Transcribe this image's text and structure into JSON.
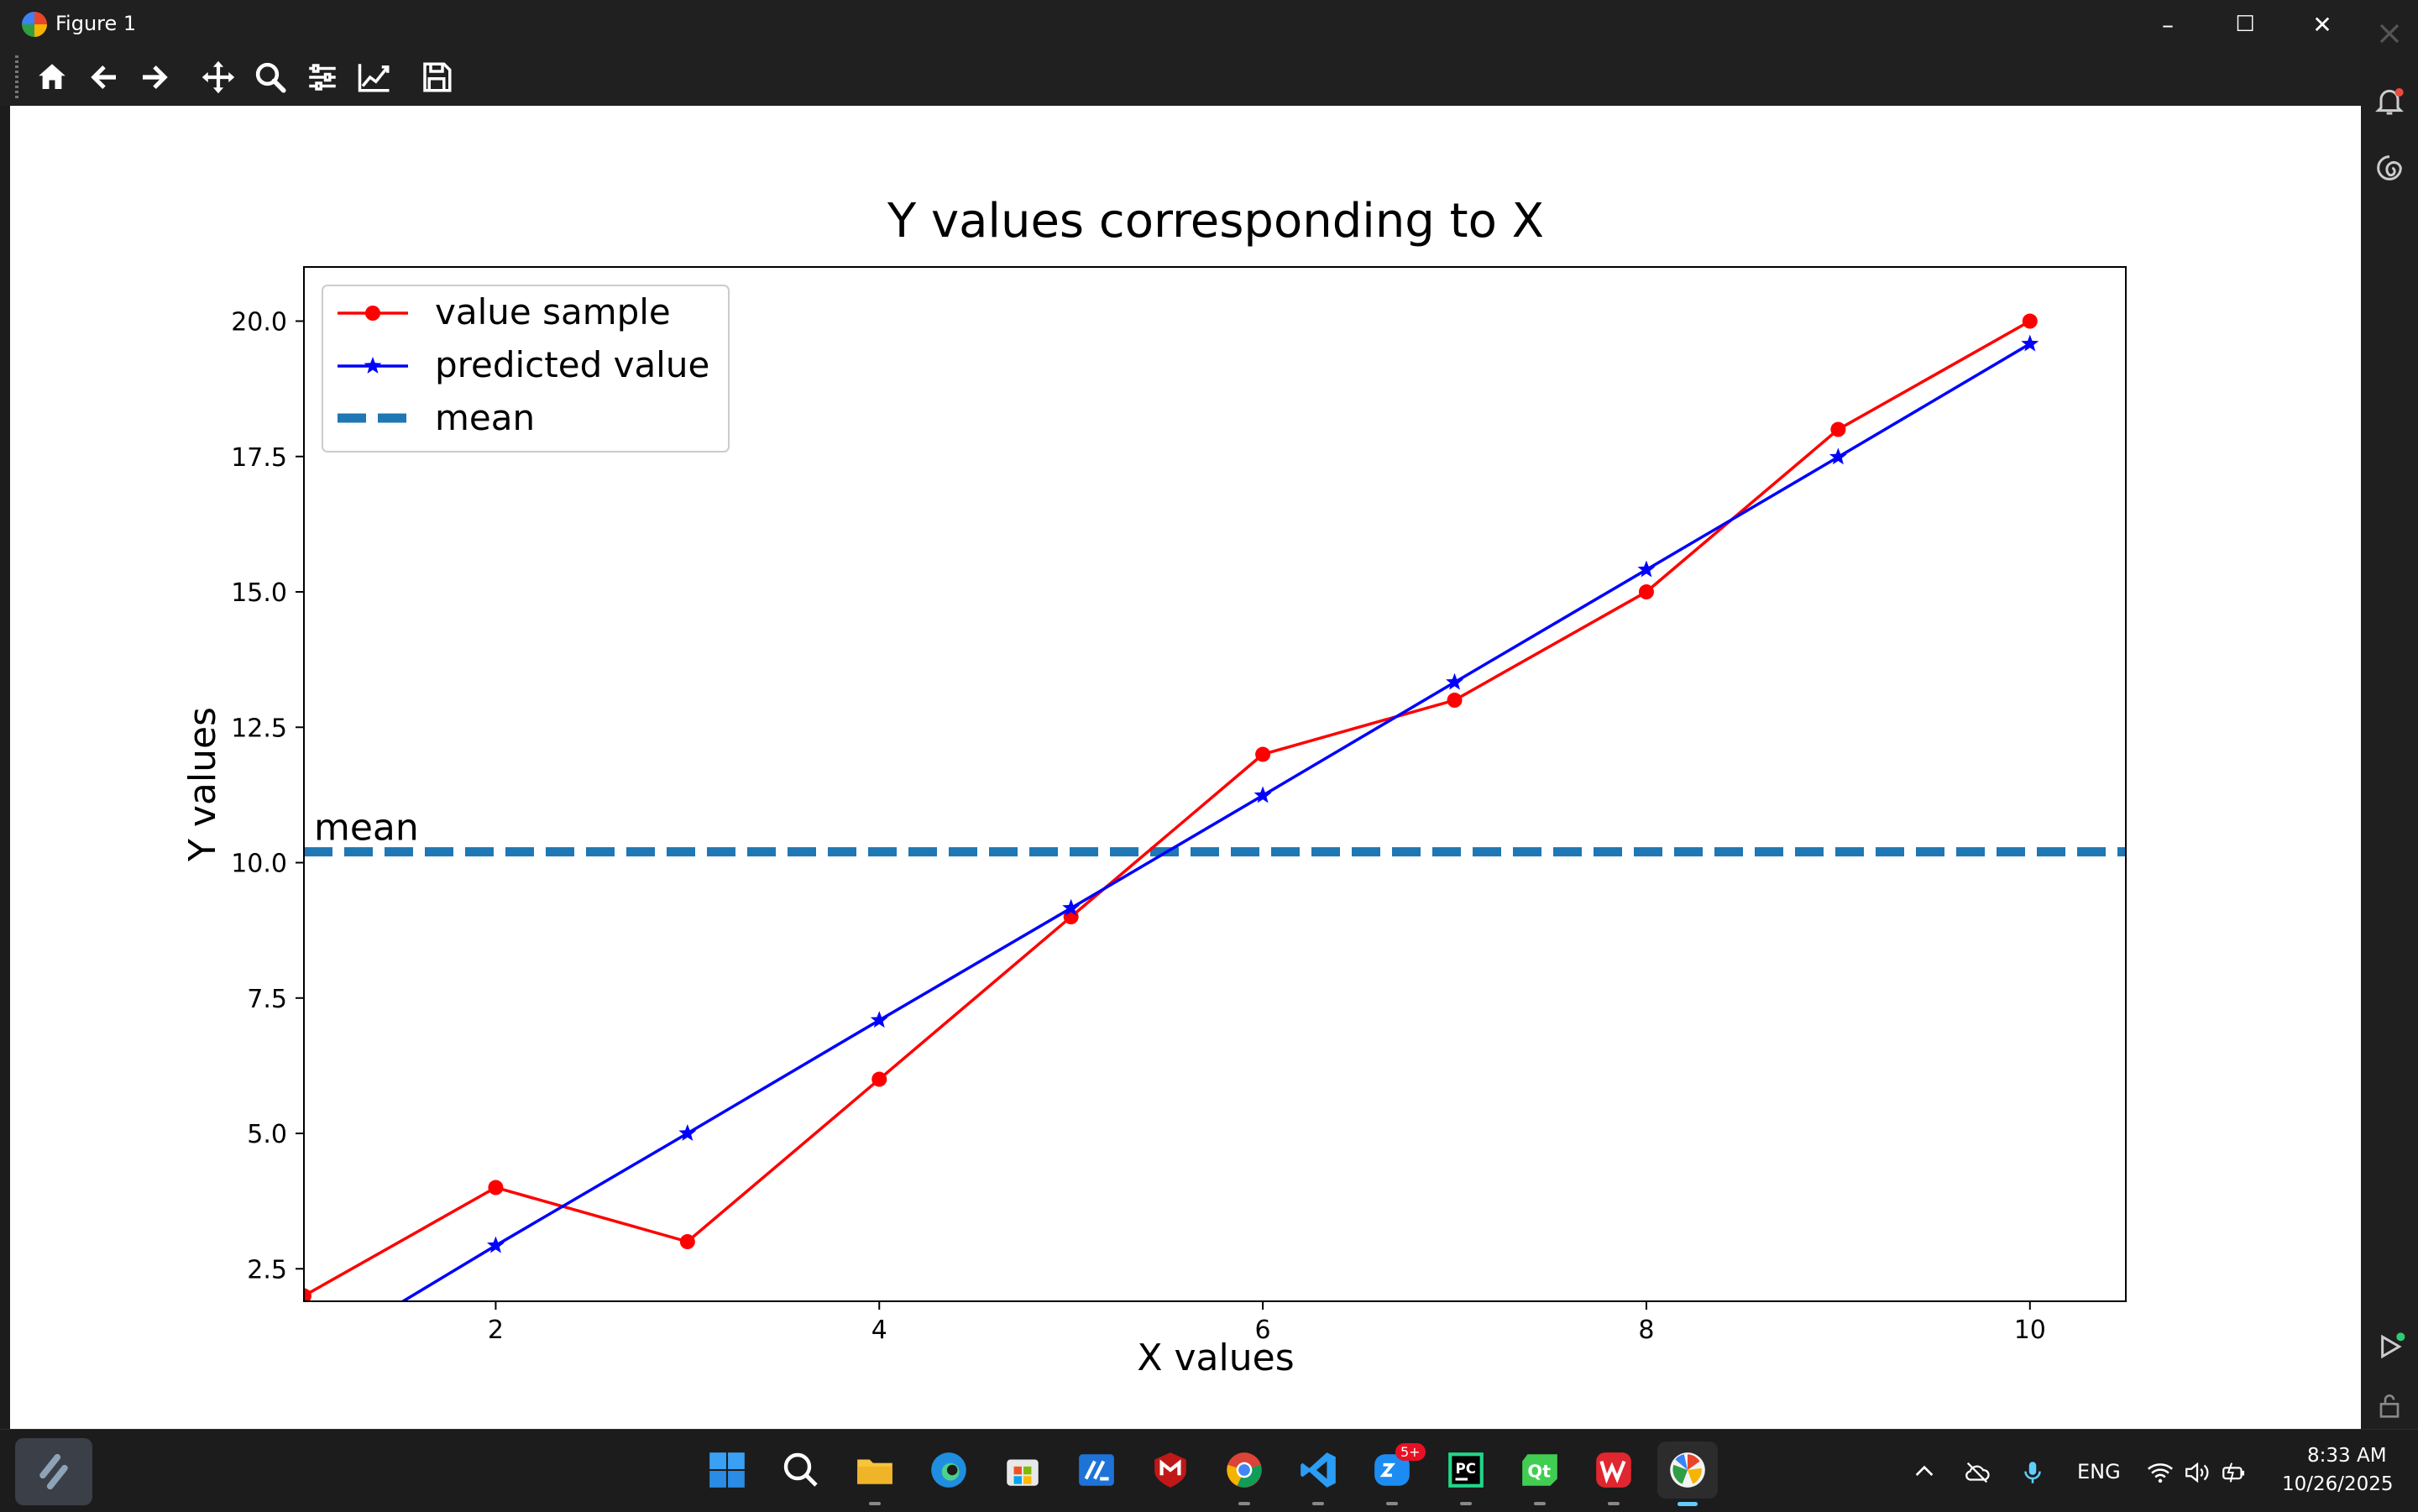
{
  "window": {
    "title": "Figure 1",
    "controls": [
      "–",
      "☐",
      "✕"
    ]
  },
  "toolbar": {
    "items": [
      "home-icon",
      "back-icon",
      "forward-icon",
      "pan-icon",
      "zoom-icon",
      "subplots-icon",
      "customize-icon",
      "save-icon"
    ]
  },
  "chart_data": {
    "type": "line",
    "title": "Y values corresponding to X",
    "xlabel": "X values",
    "ylabel": "Y values",
    "xlim": [
      1,
      10.5
    ],
    "ylim": [
      1.9,
      21
    ],
    "xticks": [
      2,
      4,
      6,
      8,
      10
    ],
    "yticks": [
      2.5,
      5.0,
      7.5,
      10.0,
      12.5,
      15.0,
      17.5,
      20.0
    ],
    "ytick_labels": [
      "2.5",
      "5.0",
      "7.5",
      "10.0",
      "12.5",
      "15.0",
      "17.5",
      "20.0"
    ],
    "series": [
      {
        "name": "value sample",
        "color": "#ff0000",
        "marker": "circle",
        "x": [
          1,
          2,
          3,
          4,
          5,
          6,
          7,
          8,
          9,
          10
        ],
        "y": [
          2,
          4,
          3,
          6,
          9,
          12,
          13,
          15,
          18,
          20
        ]
      },
      {
        "name": "predicted value",
        "color": "#0000ff",
        "marker": "star",
        "x": [
          1,
          2,
          3,
          4,
          5,
          6,
          7,
          8,
          9,
          10
        ],
        "y": [
          0.8,
          2.93,
          5.0,
          7.09,
          9.16,
          11.24,
          13.33,
          15.41,
          17.49,
          19.58
        ]
      }
    ],
    "mean": {
      "name": "mean",
      "value": 10.2,
      "color": "#1f77b4",
      "label": "mean"
    },
    "legend": "top-left",
    "grid": false
  },
  "taskbar": {
    "apps": [
      "start-icon",
      "search-icon",
      "file-explorer-icon",
      "edge-icon",
      "store-icon",
      "app-icon",
      "mcafee-icon",
      "chrome-icon",
      "vscode-icon",
      "zalo-icon",
      "pycharm-icon",
      "qt-icon",
      "wps-icon",
      "matplotlib-icon"
    ],
    "zalo_badge": "5+",
    "language": "ENG",
    "time": "8:33 AM",
    "date": "10/26/2025"
  }
}
